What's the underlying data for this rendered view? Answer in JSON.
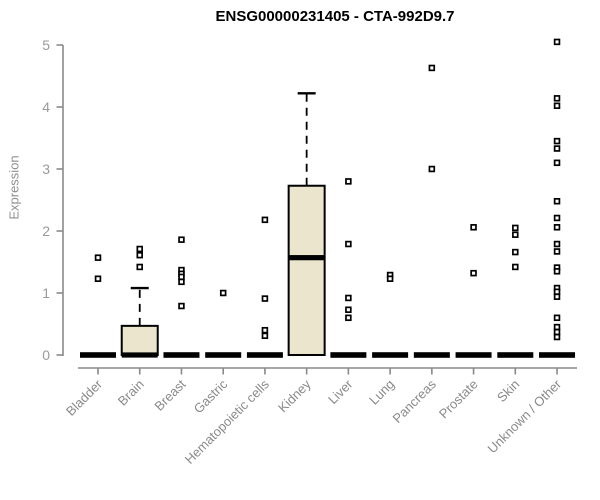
{
  "page": {
    "background": "#ffffff"
  },
  "chart_data": {
    "type": "boxplot",
    "title": "ENSG00000231405 - CTA-992D9.7",
    "ylabel": "Expression",
    "xlabel": "",
    "ylim": [
      0,
      5
    ],
    "yticks": [
      0,
      1,
      2,
      3,
      4,
      5
    ],
    "grid": false,
    "legend": false,
    "categories": [
      "Bladder",
      "Brain",
      "Breast",
      "Gastric",
      "Hematopoietic cells",
      "Kidney",
      "Liver",
      "Lung",
      "Pancreas",
      "Prostate",
      "Skin",
      "Unknown / Other"
    ],
    "boxes": [
      {
        "category": "Bladder",
        "q1": 0,
        "median": 0,
        "q3": 0,
        "whisker_low": 0,
        "whisker_high": 0,
        "points": [
          1.57,
          1.23
        ]
      },
      {
        "category": "Brain",
        "q1": 0,
        "median": 0,
        "q3": 0.47,
        "whisker_low": 0,
        "whisker_high": 1.08,
        "points": [
          1.71,
          1.61,
          1.42
        ]
      },
      {
        "category": "Breast",
        "q1": 0,
        "median": 0,
        "q3": 0,
        "whisker_low": 0,
        "whisker_high": 0,
        "points": [
          1.86,
          1.37,
          1.31,
          1.26,
          1.18,
          0.79
        ]
      },
      {
        "category": "Gastric",
        "q1": 0,
        "median": 0,
        "q3": 0,
        "whisker_low": 0,
        "whisker_high": 0,
        "points": [
          1.0
        ]
      },
      {
        "category": "Hematopoietic cells",
        "q1": 0,
        "median": 0,
        "q3": 0,
        "whisker_low": 0,
        "whisker_high": 0,
        "points": [
          2.18,
          0.91,
          0.4,
          0.31
        ]
      },
      {
        "category": "Kidney",
        "q1": 0,
        "median": 1.57,
        "q3": 2.73,
        "whisker_low": 0,
        "whisker_high": 4.22,
        "points": []
      },
      {
        "category": "Liver",
        "q1": 0,
        "median": 0,
        "q3": 0,
        "whisker_low": 0,
        "whisker_high": 0,
        "points": [
          2.8,
          1.79,
          0.92,
          0.73,
          0.6
        ]
      },
      {
        "category": "Lung",
        "q1": 0,
        "median": 0,
        "q3": 0,
        "whisker_low": 0,
        "whisker_high": 0,
        "points": [
          1.29,
          1.23
        ]
      },
      {
        "category": "Pancreas",
        "q1": 0,
        "median": 0,
        "q3": 0,
        "whisker_low": 0,
        "whisker_high": 0,
        "points": [
          4.63,
          3.0
        ]
      },
      {
        "category": "Prostate",
        "q1": 0,
        "median": 0,
        "q3": 0,
        "whisker_low": 0,
        "whisker_high": 0,
        "points": [
          2.06,
          1.32
        ]
      },
      {
        "category": "Skin",
        "q1": 0,
        "median": 0,
        "q3": 0,
        "whisker_low": 0,
        "whisker_high": 0,
        "points": [
          2.05,
          1.94,
          1.66,
          1.42
        ]
      },
      {
        "category": "Unknown / Other",
        "q1": 0,
        "median": 0,
        "q3": 0,
        "whisker_low": 0,
        "whisker_high": 0,
        "points": [
          5.05,
          4.14,
          4.02,
          3.45,
          3.33,
          3.1,
          2.48,
          2.21,
          2.06,
          1.79,
          1.67,
          1.41,
          1.35,
          1.08,
          1.02,
          0.94,
          0.6,
          0.45,
          0.37,
          0.29
        ]
      }
    ],
    "colors": {
      "box_fill": "#EBE5CE",
      "box_stroke": "#000000",
      "median": "#000000",
      "axis": "#8a8a8a",
      "tick_label": "#9a9a9a",
      "category_label": "#8a8a8a",
      "title": "#000000",
      "point_fill": "#ffffff",
      "point_stroke": "#000000"
    }
  }
}
